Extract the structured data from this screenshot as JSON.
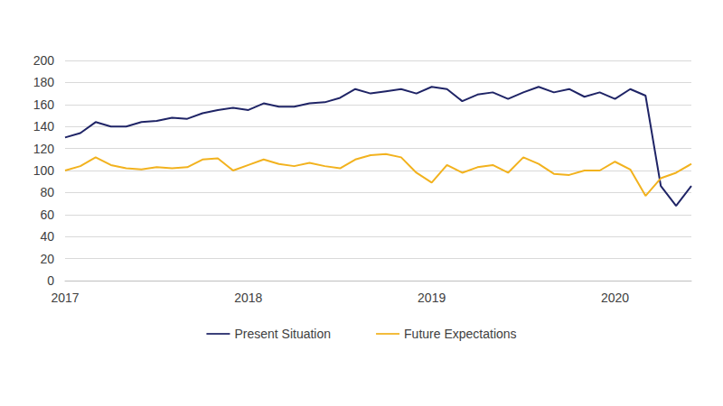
{
  "chart_data": {
    "type": "line",
    "categories": [
      "2017",
      null,
      null,
      null,
      null,
      null,
      null,
      null,
      null,
      null,
      null,
      null,
      "2018",
      null,
      null,
      null,
      null,
      null,
      null,
      null,
      null,
      null,
      null,
      null,
      "2019",
      null,
      null,
      null,
      null,
      null,
      null,
      null,
      null,
      null,
      null,
      null,
      "2020",
      null,
      null,
      null,
      null,
      null
    ],
    "series": [
      {
        "name": "Present Situation",
        "color": "#1f2466",
        "values": [
          130,
          134,
          144,
          140,
          140,
          144,
          145,
          148,
          147,
          152,
          155,
          157,
          155,
          161,
          158,
          158,
          161,
          162,
          166,
          174,
          170,
          172,
          174,
          170,
          176,
          174,
          163,
          169,
          171,
          165,
          171,
          176,
          171,
          174,
          167,
          171,
          165,
          174,
          168,
          86,
          68,
          86
        ]
      },
      {
        "name": "Future Expectations",
        "color": "#f2b21e",
        "values": [
          100,
          104,
          112,
          105,
          102,
          101,
          103,
          102,
          103,
          110,
          111,
          100,
          105,
          110,
          106,
          104,
          107,
          104,
          102,
          110,
          114,
          115,
          112,
          98,
          89,
          105,
          98,
          103,
          105,
          98,
          112,
          106,
          97,
          96,
          100,
          100,
          108,
          101,
          77,
          93,
          98,
          106
        ]
      }
    ],
    "ylim": [
      0,
      200
    ],
    "yticks": [
      0,
      20,
      40,
      60,
      80,
      100,
      120,
      140,
      160,
      180,
      200
    ],
    "grid": true,
    "legend": "bottom"
  }
}
